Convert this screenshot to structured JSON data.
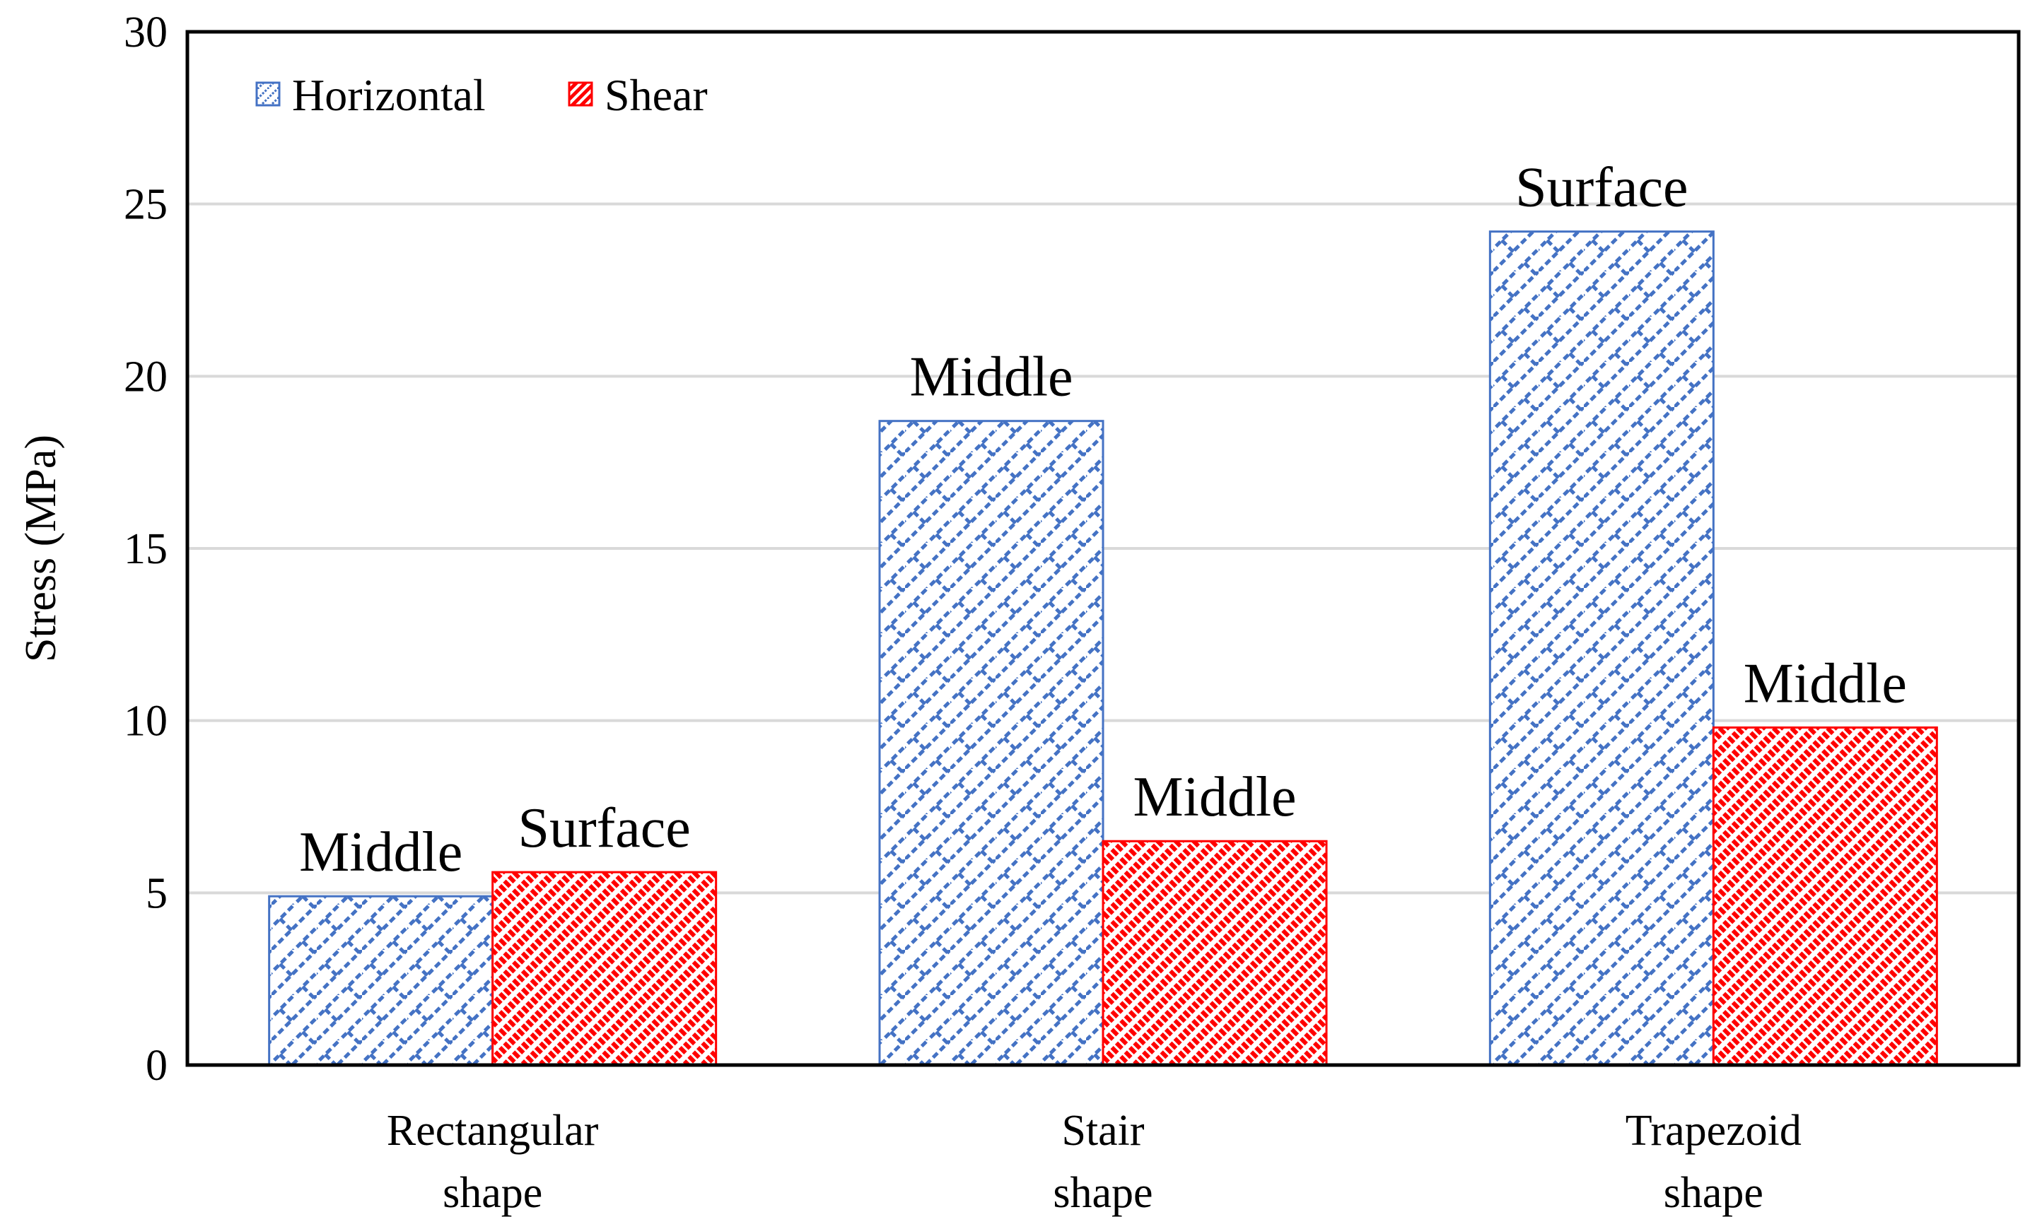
{
  "chart_data": {
    "type": "bar",
    "title": "",
    "xlabel": "",
    "ylabel": "Stress (MPa)",
    "ylim": [
      0,
      30
    ],
    "yticks": [
      0,
      5,
      10,
      15,
      20,
      25,
      30
    ],
    "ytick_labels": [
      "0",
      "5",
      "10",
      "15",
      "20",
      "25",
      "30"
    ],
    "grid": true,
    "legend_position": "top-left",
    "categories": [
      [
        "Rectangular",
        "shape"
      ],
      [
        "Stair",
        "shape"
      ],
      [
        "Trapezoid",
        "shape"
      ]
    ],
    "series": [
      {
        "name": "Horizontal",
        "color": "#4472C4",
        "values": [
          4.9,
          18.7,
          24.2
        ],
        "annotations": [
          "Middle",
          "Middle",
          "Surface"
        ]
      },
      {
        "name": "Shear",
        "color": "#FF0000",
        "values": [
          5.6,
          6.5,
          9.8
        ],
        "annotations": [
          "Surface",
          "Middle",
          "Middle"
        ]
      }
    ]
  }
}
